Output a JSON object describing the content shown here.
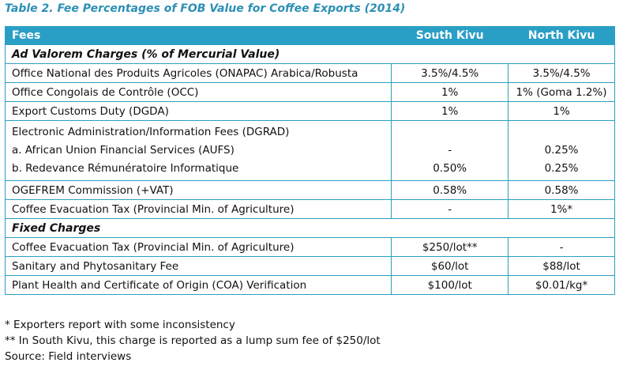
{
  "title": "Table 2. Fee Percentages of FOB Value for Coffee Exports (2014)",
  "headers": {
    "fees": "Fees",
    "south": "South Kivu",
    "north": "North Kivu"
  },
  "section_ad_valorem": "Ad Valorem Charges (% of Mercurial Value)",
  "section_fixed": "Fixed Charges",
  "ad_valorem_rows": [
    {
      "fee": "Office National des Produits Agricoles (ONAPAC) Arabica/Robusta",
      "south": "3.5%/4.5%",
      "north": "3.5%/4.5%"
    },
    {
      "fee": "Office Congolais de Contrôle (OCC)",
      "south": "1%",
      "north": "1% (Goma 1.2%)"
    },
    {
      "fee": "Export Customs Duty (DGDA)",
      "south": "1%",
      "north": "1%"
    }
  ],
  "electronic_group": {
    "heading": "Electronic Administration/Information Fees (DGRAD)",
    "items": [
      {
        "fee": "a. African Union Financial Services (AUFS)",
        "south": "-",
        "north": "0.25%"
      },
      {
        "fee": "b. Redevance Rémunératoire Informatique",
        "south": "0.50%",
        "north": "0.25%"
      }
    ]
  },
  "ad_valorem_rows_2": [
    {
      "fee": "OGEFREM Commission (+VAT)",
      "south": "0.58%",
      "north": "0.58%"
    },
    {
      "fee": "Coffee Evacuation Tax (Provincial Min. of Agriculture)",
      "south": "-",
      "north": "1%*"
    }
  ],
  "fixed_rows": [
    {
      "fee": "Coffee Evacuation Tax (Provincial Min. of Agriculture)",
      "south": "$250/lot**",
      "north": "-"
    },
    {
      "fee": "Sanitary and Phytosanitary Fee",
      "south": "$60/lot",
      "north": "$88/lot"
    },
    {
      "fee": "Plant Health and Certificate of Origin (COA) Verification",
      "south": "$100/lot",
      "north": "$0.01/kg*"
    }
  ],
  "notes": [
    "* Exporters report with some inconsistency",
    "** In South Kivu, this charge is reported as a lump sum fee of $250/lot",
    "Source: Field interviews"
  ]
}
